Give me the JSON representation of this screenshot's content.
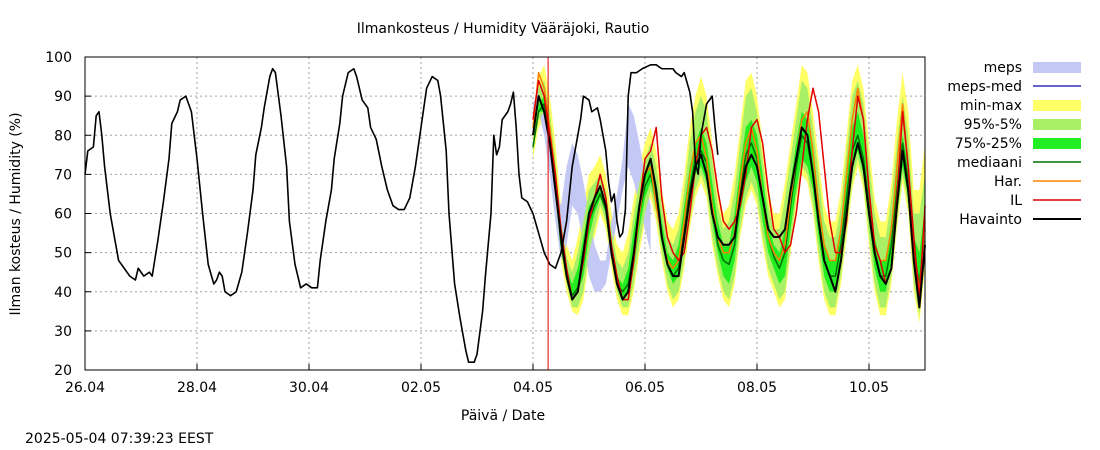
{
  "chart_data": {
    "type": "line",
    "title": "Ilmankosteus / Humidity  Vääräjoki, Rautio",
    "xlabel": "Päivä / Date",
    "ylabel": "Ilman kosteus / Humidity (%)",
    "timestamp": "2025-05-04 07:39:23 EEST",
    "x_ticks": [
      "26.04",
      "28.04",
      "30.04",
      "02.05",
      "04.05",
      "06.05",
      "08.05",
      "10.05"
    ],
    "y_ticks": [
      20,
      30,
      40,
      50,
      60,
      70,
      80,
      90,
      100
    ],
    "ylim": [
      20,
      100
    ],
    "xlim_days": [
      0,
      15
    ],
    "grid": true,
    "legend_position": "right",
    "now_marker_day": 8.27,
    "legend": [
      {
        "label": "meps",
        "kind": "band",
        "color": "#c4c8f4"
      },
      {
        "label": "meps-med",
        "kind": "line",
        "color": "#3030c0"
      },
      {
        "label": "min-max",
        "kind": "band",
        "color": "#ffff66"
      },
      {
        "label": "95%-5%",
        "kind": "band",
        "color": "#aaf066"
      },
      {
        "label": "75%-25%",
        "kind": "band",
        "color": "#22ee22"
      },
      {
        "label": "mediaani",
        "kind": "line",
        "color": "#007000"
      },
      {
        "label": "Har.",
        "kind": "line",
        "color": "#ff8000"
      },
      {
        "label": "IL",
        "kind": "line",
        "color": "#e00000"
      },
      {
        "label": "Havainto",
        "kind": "line",
        "color": "#000000"
      }
    ],
    "observed": [
      [
        0.0,
        70
      ],
      [
        0.05,
        76
      ],
      [
        0.15,
        77
      ],
      [
        0.2,
        85
      ],
      [
        0.25,
        86
      ],
      [
        0.3,
        80
      ],
      [
        0.35,
        72
      ],
      [
        0.45,
        60
      ],
      [
        0.55,
        52
      ],
      [
        0.6,
        48
      ],
      [
        0.7,
        46
      ],
      [
        0.8,
        44
      ],
      [
        0.9,
        43
      ],
      [
        0.95,
        46
      ],
      [
        1.05,
        44
      ],
      [
        1.15,
        45
      ],
      [
        1.2,
        44
      ],
      [
        1.3,
        53
      ],
      [
        1.4,
        63
      ],
      [
        1.5,
        74
      ],
      [
        1.55,
        83
      ],
      [
        1.65,
        86
      ],
      [
        1.7,
        89
      ],
      [
        1.8,
        90
      ],
      [
        1.9,
        86
      ],
      [
        2.0,
        74
      ],
      [
        2.1,
        60
      ],
      [
        2.2,
        47
      ],
      [
        2.3,
        42
      ],
      [
        2.35,
        43
      ],
      [
        2.4,
        45
      ],
      [
        2.45,
        44
      ],
      [
        2.5,
        40
      ],
      [
        2.6,
        39
      ],
      [
        2.7,
        40
      ],
      [
        2.8,
        45
      ],
      [
        2.9,
        55
      ],
      [
        3.0,
        66
      ],
      [
        3.05,
        75
      ],
      [
        3.15,
        82
      ],
      [
        3.2,
        87
      ],
      [
        3.3,
        95
      ],
      [
        3.35,
        97
      ],
      [
        3.4,
        96
      ],
      [
        3.5,
        85
      ],
      [
        3.6,
        72
      ],
      [
        3.65,
        58
      ],
      [
        3.75,
        47
      ],
      [
        3.8,
        44
      ],
      [
        3.85,
        41
      ],
      [
        3.95,
        42
      ],
      [
        4.05,
        41
      ],
      [
        4.15,
        41
      ],
      [
        4.2,
        48
      ],
      [
        4.3,
        58
      ],
      [
        4.4,
        66
      ],
      [
        4.45,
        74
      ],
      [
        4.55,
        83
      ],
      [
        4.6,
        90
      ],
      [
        4.7,
        96
      ],
      [
        4.8,
        97
      ],
      [
        4.85,
        95
      ],
      [
        4.95,
        89
      ],
      [
        5.0,
        88
      ],
      [
        5.05,
        87
      ],
      [
        5.1,
        82
      ],
      [
        5.2,
        79
      ],
      [
        5.3,
        72
      ],
      [
        5.4,
        66
      ],
      [
        5.5,
        62
      ],
      [
        5.6,
        61
      ],
      [
        5.7,
        61
      ],
      [
        5.8,
        64
      ],
      [
        5.9,
        72
      ],
      [
        6.0,
        82
      ],
      [
        6.1,
        92
      ],
      [
        6.2,
        95
      ],
      [
        6.3,
        94
      ],
      [
        6.35,
        90
      ],
      [
        6.45,
        76
      ],
      [
        6.5,
        60
      ],
      [
        6.6,
        42
      ],
      [
        6.7,
        33
      ],
      [
        6.8,
        25
      ],
      [
        6.85,
        22
      ],
      [
        6.95,
        22
      ],
      [
        7.0,
        24
      ],
      [
        7.1,
        35
      ],
      [
        7.15,
        44
      ],
      [
        7.25,
        60
      ],
      [
        7.3,
        80
      ],
      [
        7.35,
        75
      ],
      [
        7.4,
        77
      ],
      [
        7.45,
        84
      ],
      [
        7.55,
        86
      ],
      [
        7.6,
        88
      ],
      [
        7.65,
        91
      ],
      [
        7.7,
        82
      ],
      [
        7.75,
        70
      ],
      [
        7.8,
        64
      ],
      [
        7.9,
        63
      ],
      [
        8.0,
        60
      ],
      [
        8.1,
        55
      ],
      [
        8.2,
        50
      ],
      [
        8.3,
        47
      ],
      [
        8.4,
        46
      ],
      [
        8.5,
        50
      ],
      [
        8.6,
        58
      ],
      [
        8.7,
        72
      ],
      [
        8.8,
        80
      ],
      [
        8.85,
        84
      ],
      [
        8.9,
        90
      ],
      [
        9.0,
        89
      ],
      [
        9.05,
        86
      ],
      [
        9.15,
        87
      ],
      [
        9.2,
        84
      ],
      [
        9.3,
        76
      ],
      [
        9.35,
        68
      ],
      [
        9.4,
        63
      ],
      [
        9.45,
        65
      ],
      [
        9.5,
        58
      ],
      [
        9.55,
        54
      ],
      [
        9.6,
        55
      ],
      [
        9.65,
        61
      ],
      [
        9.7,
        90
      ],
      [
        9.75,
        96
      ],
      [
        9.85,
        96
      ],
      [
        9.95,
        97
      ],
      [
        10.1,
        98
      ],
      [
        10.2,
        98
      ],
      [
        10.3,
        97
      ],
      [
        10.4,
        97
      ],
      [
        10.5,
        97
      ],
      [
        10.55,
        96
      ],
      [
        10.65,
        95
      ],
      [
        10.7,
        96
      ],
      [
        10.8,
        91
      ],
      [
        10.85,
        86
      ],
      [
        10.9,
        73
      ],
      [
        10.95,
        70
      ],
      [
        11.0,
        80
      ],
      [
        11.1,
        88
      ],
      [
        11.2,
        90
      ],
      [
        11.25,
        82
      ],
      [
        11.3,
        75
      ]
    ],
    "forecast_days": [
      8.0,
      8.1,
      8.2,
      8.3,
      8.4,
      8.5,
      8.6,
      8.7,
      8.8,
      8.9,
      9.0,
      9.1,
      9.2,
      9.3,
      9.4,
      9.5,
      9.6,
      9.7,
      9.8,
      9.9,
      10.0,
      10.1,
      10.2,
      10.3,
      10.4,
      10.5,
      10.6,
      10.7,
      10.8,
      10.9,
      11.0,
      11.1,
      11.2,
      11.3,
      11.4,
      11.5,
      11.6,
      11.7,
      11.8,
      11.9,
      12.0,
      12.1,
      12.2,
      12.3,
      12.4,
      12.5,
      12.6,
      12.7,
      12.8,
      12.9,
      13.0,
      13.1,
      13.2,
      13.3,
      13.4,
      13.5,
      13.6,
      13.7,
      13.8,
      13.9,
      14.0,
      14.1,
      14.2,
      14.3,
      14.4,
      14.5,
      14.6,
      14.7,
      14.8,
      14.9,
      15.0
    ],
    "series": [
      {
        "name": "meps_max",
        "values": [
          88,
          92,
          88,
          78,
          68,
          62,
          72,
          78,
          75,
          68,
          60,
          52,
          48,
          48,
          58,
          65,
          74,
          88,
          85,
          78,
          70,
          62
        ]
      },
      {
        "name": "meps_min",
        "values": [
          82,
          86,
          80,
          70,
          58,
          48,
          52,
          62,
          60,
          52,
          44,
          40,
          40,
          42,
          50,
          58,
          66,
          72,
          68,
          62,
          56,
          50
        ]
      },
      {
        "name": "minmax_max",
        "values": [
          80,
          95,
          98,
          90,
          78,
          62,
          52,
          48,
          54,
          62,
          70,
          72,
          75,
          70,
          60,
          52,
          50,
          55,
          64,
          72,
          78,
          82,
          76,
          66,
          58,
          56,
          60,
          70,
          82,
          90,
          95,
          90,
          78,
          66,
          60,
          62,
          70,
          82,
          94,
          96,
          90,
          78,
          66,
          60,
          60,
          68,
          78,
          88,
          98,
          96,
          86,
          74,
          62,
          58,
          58,
          66,
          80,
          94,
          98,
          92,
          78,
          64,
          58,
          58,
          68,
          84,
          96,
          86,
          66,
          66,
          78
        ]
      },
      {
        "name": "minmax_min",
        "values": [
          74,
          82,
          84,
          75,
          62,
          48,
          40,
          35,
          34,
          38,
          48,
          54,
          60,
          56,
          46,
          38,
          34,
          34,
          40,
          50,
          58,
          64,
          58,
          48,
          40,
          36,
          38,
          46,
          56,
          64,
          68,
          64,
          52,
          44,
          38,
          36,
          42,
          54,
          62,
          66,
          62,
          52,
          44,
          40,
          36,
          38,
          50,
          62,
          70,
          68,
          60,
          48,
          38,
          34,
          34,
          42,
          54,
          66,
          72,
          66,
          52,
          40,
          34,
          34,
          42,
          56,
          68,
          60,
          40,
          32,
          46
        ]
      },
      {
        "name": "p95",
        "values": [
          78,
          92,
          94,
          86,
          74,
          58,
          49,
          45,
          50,
          58,
          66,
          68,
          70,
          66,
          56,
          48,
          46,
          50,
          60,
          68,
          74,
          78,
          72,
          62,
          54,
          52,
          56,
          66,
          78,
          86,
          90,
          86,
          74,
          62,
          56,
          58,
          66,
          78,
          90,
          92,
          86,
          74,
          62,
          56,
          56,
          64,
          74,
          84,
          94,
          92,
          82,
          70,
          58,
          54,
          54,
          62,
          76,
          90,
          94,
          88,
          74,
          60,
          54,
          54,
          64,
          78,
          90,
          80,
          60,
          60,
          70
        ]
      },
      {
        "name": "p5",
        "values": [
          76,
          84,
          86,
          78,
          64,
          50,
          42,
          36,
          36,
          40,
          50,
          56,
          62,
          58,
          48,
          40,
          36,
          36,
          42,
          52,
          60,
          66,
          60,
          50,
          42,
          38,
          40,
          48,
          58,
          66,
          70,
          66,
          54,
          46,
          40,
          38,
          44,
          56,
          64,
          68,
          64,
          54,
          46,
          42,
          38,
          40,
          52,
          64,
          72,
          70,
          62,
          50,
          40,
          36,
          36,
          44,
          56,
          68,
          74,
          68,
          54,
          42,
          36,
          36,
          44,
          58,
          70,
          62,
          42,
          34,
          48
        ]
      },
      {
        "name": "p75",
        "values": [
          76,
          88,
          90,
          82,
          70,
          54,
          46,
          42,
          46,
          54,
          62,
          64,
          66,
          62,
          52,
          44,
          42,
          46,
          56,
          64,
          70,
          74,
          68,
          58,
          50,
          48,
          52,
          62,
          72,
          78,
          82,
          78,
          68,
          58,
          52,
          52,
          60,
          72,
          82,
          84,
          80,
          70,
          58,
          52,
          50,
          56,
          68,
          78,
          86,
          84,
          76,
          64,
          52,
          48,
          48,
          56,
          70,
          82,
          86,
          80,
          68,
          54,
          48,
          48,
          58,
          70,
          80,
          72,
          54,
          50,
          62
        ]
      },
      {
        "name": "p25",
        "values": [
          78,
          86,
          86,
          80,
          66,
          52,
          44,
          38,
          40,
          44,
          54,
          60,
          64,
          60,
          50,
          42,
          38,
          40,
          46,
          56,
          64,
          68,
          62,
          52,
          46,
          42,
          44,
          52,
          62,
          70,
          72,
          68,
          58,
          50,
          44,
          42,
          48,
          60,
          68,
          72,
          68,
          58,
          50,
          46,
          42,
          44,
          56,
          66,
          74,
          72,
          66,
          54,
          44,
          40,
          40,
          48,
          60,
          72,
          76,
          70,
          58,
          46,
          40,
          40,
          48,
          60,
          72,
          64,
          46,
          38,
          52
        ]
      },
      {
        "name": "mediaani",
        "values": [
          77,
          86,
          88,
          80,
          68,
          52,
          44,
          39,
          41,
          48,
          58,
          62,
          65,
          61,
          50,
          42,
          40,
          42,
          50,
          60,
          67,
          70,
          64,
          54,
          47,
          44,
          46,
          56,
          66,
          74,
          76,
          73,
          62,
          52,
          48,
          47,
          52,
          65,
          75,
          78,
          74,
          64,
          54,
          49,
          46,
          50,
          62,
          72,
          80,
          78,
          70,
          58,
          48,
          44,
          44,
          52,
          64,
          76,
          80,
          74,
          62,
          50,
          44,
          44,
          52,
          66,
          78,
          68,
          50,
          42,
          56
        ]
      },
      {
        "name": "Har.",
        "values": [
          82,
          96,
          92,
          82,
          70,
          55,
          45,
          38,
          40,
          50,
          58,
          64,
          70,
          64,
          50,
          42,
          38,
          38,
          48,
          60,
          70,
          72,
          62,
          54,
          48,
          46,
          48,
          58,
          70,
          78,
          80,
          74,
          62,
          54,
          50,
          50,
          55,
          68,
          78,
          82,
          76,
          64,
          54,
          50,
          48,
          52,
          64,
          74,
          84,
          86,
          76,
          62,
          52,
          48,
          48,
          56,
          70,
          84,
          92,
          84,
          66,
          52,
          48,
          48,
          56,
          72,
          88,
          72,
          52,
          40,
          58
        ]
      },
      {
        "name": "IL",
        "values": [
          84,
          94,
          90,
          80,
          70,
          56,
          46,
          38,
          40,
          48,
          58,
          64,
          70,
          64,
          52,
          44,
          38,
          38,
          48,
          62,
          74,
          76,
          82,
          64,
          54,
          50,
          48,
          50,
          60,
          72,
          80,
          82,
          76,
          66,
          58,
          56,
          58,
          62,
          70,
          82,
          84,
          78,
          66,
          56,
          54,
          50,
          52,
          60,
          72,
          84,
          92,
          86,
          72,
          58,
          50,
          50,
          58,
          76,
          90,
          84,
          66,
          52,
          48,
          42,
          46,
          64,
          86,
          72,
          54,
          38,
          62
        ]
      },
      {
        "name": "Havainto",
        "values": [
          80,
          90,
          86,
          78,
          66,
          54,
          44,
          38,
          40,
          50,
          60,
          64,
          67,
          62,
          50,
          42,
          38,
          40,
          50,
          62,
          70,
          74,
          66,
          54,
          47,
          44,
          44,
          54,
          64,
          72,
          75,
          70,
          60,
          54,
          52,
          52,
          54,
          64,
          72,
          75,
          72,
          64,
          56,
          54,
          54,
          56,
          66,
          74,
          82,
          80,
          70,
          58,
          48,
          44,
          40,
          48,
          60,
          72,
          78,
          72,
          60,
          50,
          44,
          42,
          46,
          62,
          76,
          66,
          48,
          36,
          52
        ]
      }
    ]
  }
}
